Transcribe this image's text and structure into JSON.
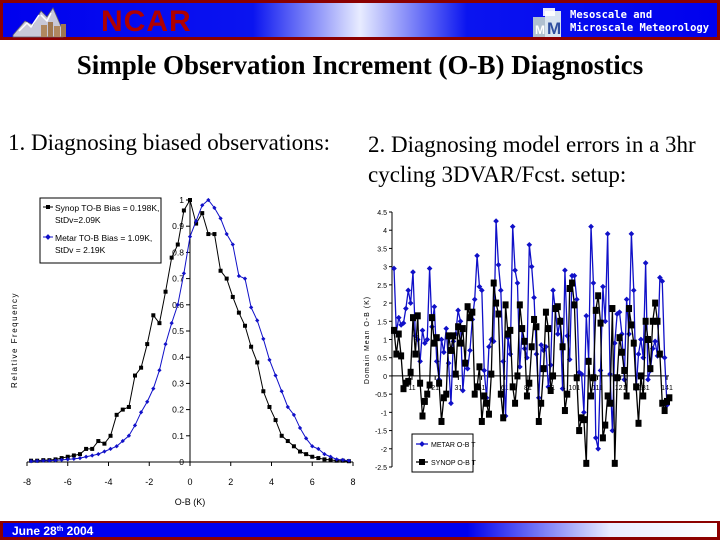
{
  "header": {
    "org_name": "NCAR",
    "org_logo_icon": "ncar-mountain-logo-icon",
    "group_logo_icon": "mmm-cube-logo-icon",
    "group_line1": "Mesoscale and",
    "group_line2": "Microscale Meteorology"
  },
  "slide": {
    "title": "Simple Observation Increment (O-B) Diagnostics",
    "section1": "1. Diagnosing biased observations:",
    "section2": "2. Diagnosing model errors in a 3hr cycling 3DVAR/Fcst. setup:"
  },
  "footer": {
    "date_prefix": "June 28",
    "date_sup": "th",
    "date_suffix": " 2004"
  },
  "colors": {
    "synop": "#000000",
    "metar": "#1010c8",
    "bar_border": "#8b0000",
    "bar_blue": "#0000ee",
    "ncar_red": "#b00000"
  },
  "chart_data": [
    {
      "type": "line",
      "title": "",
      "xlabel": "O-B (K)",
      "ylabel": "Relative Frequency",
      "xlim": [
        -8,
        8
      ],
      "ylim": [
        0,
        1
      ],
      "xticks": [
        -8,
        -6,
        -4,
        -2,
        0,
        2,
        4,
        6,
        8
      ],
      "yticks": [
        0,
        0.1,
        0.2,
        0.3,
        0.4,
        0.5,
        0.6,
        0.7,
        0.8,
        0.9,
        1
      ],
      "grid": false,
      "legend_position": "top-left",
      "series": [
        {
          "name": "Synop TO-B Bias = 0.198K, StDv=2.09K",
          "marker": "square",
          "x": [
            -7.8,
            -7.5,
            -7.2,
            -6.9,
            -6.6,
            -6.3,
            -6.0,
            -5.7,
            -5.4,
            -5.1,
            -4.8,
            -4.5,
            -4.2,
            -3.9,
            -3.6,
            -3.3,
            -3.0,
            -2.7,
            -2.4,
            -2.1,
            -1.8,
            -1.5,
            -1.2,
            -0.9,
            -0.6,
            -0.3,
            0.0,
            0.3,
            0.6,
            0.9,
            1.2,
            1.5,
            1.8,
            2.1,
            2.4,
            2.7,
            3.0,
            3.3,
            3.6,
            3.9,
            4.2,
            4.5,
            4.8,
            5.1,
            5.4,
            5.7,
            6.0,
            6.3,
            6.6,
            6.9,
            7.2,
            7.5,
            7.8
          ],
          "y": [
            0.005,
            0.005,
            0.007,
            0.007,
            0.01,
            0.015,
            0.02,
            0.025,
            0.03,
            0.05,
            0.05,
            0.08,
            0.07,
            0.1,
            0.18,
            0.2,
            0.21,
            0.33,
            0.36,
            0.45,
            0.56,
            0.53,
            0.65,
            0.78,
            0.83,
            0.96,
            1.0,
            0.91,
            0.95,
            0.87,
            0.87,
            0.73,
            0.7,
            0.63,
            0.57,
            0.52,
            0.44,
            0.38,
            0.27,
            0.21,
            0.16,
            0.1,
            0.08,
            0.06,
            0.04,
            0.03,
            0.02,
            0.015,
            0.01,
            0.008,
            0.005,
            0.005,
            0.003
          ]
        },
        {
          "name": "Metar TO-B Bias = 1.09K, StDv = 2.19K",
          "marker": "diamond",
          "x": [
            -7.8,
            -7.5,
            -7.2,
            -6.9,
            -6.6,
            -6.3,
            -6.0,
            -5.7,
            -5.4,
            -5.1,
            -4.8,
            -4.5,
            -4.2,
            -3.9,
            -3.6,
            -3.3,
            -3.0,
            -2.7,
            -2.4,
            -2.1,
            -1.8,
            -1.5,
            -1.2,
            -0.9,
            -0.6,
            -0.3,
            0.0,
            0.3,
            0.6,
            0.9,
            1.2,
            1.5,
            1.8,
            2.1,
            2.4,
            2.7,
            3.0,
            3.3,
            3.6,
            3.9,
            4.2,
            4.5,
            4.8,
            5.1,
            5.4,
            5.7,
            6.0,
            6.3,
            6.6,
            6.9,
            7.2,
            7.5,
            7.8
          ],
          "y": [
            0.003,
            0.004,
            0.005,
            0.005,
            0.006,
            0.008,
            0.01,
            0.012,
            0.015,
            0.02,
            0.025,
            0.03,
            0.04,
            0.05,
            0.06,
            0.08,
            0.1,
            0.14,
            0.19,
            0.23,
            0.28,
            0.35,
            0.45,
            0.53,
            0.6,
            0.72,
            0.86,
            0.92,
            0.98,
            1.0,
            0.97,
            0.93,
            0.87,
            0.83,
            0.71,
            0.7,
            0.59,
            0.54,
            0.47,
            0.39,
            0.33,
            0.27,
            0.21,
            0.18,
            0.13,
            0.09,
            0.06,
            0.05,
            0.03,
            0.02,
            0.01,
            0.008,
            0.005
          ]
        }
      ]
    },
    {
      "type": "line",
      "title": "",
      "xlabel": "",
      "ylabel": "Domain Mean O-B (K)",
      "ylim": [
        -2.5,
        4.5
      ],
      "yticks": [
        -2.5,
        -2,
        -1.5,
        -1,
        -0.5,
        0,
        0.5,
        1,
        1.5,
        2,
        2.5,
        3,
        3.5,
        4,
        4.5
      ],
      "xtick_labels": [
        "11",
        "21",
        "31",
        "51",
        "61",
        "81",
        "91",
        "101",
        "111",
        "121",
        "131",
        "141"
      ],
      "grid": false,
      "legend_position": "bottom-left",
      "series": [
        {
          "name": "METAR O-B T",
          "marker": "diamond",
          "values": [
            2.95,
            1.2,
            1.6,
            1.4,
            1.45,
            1.85,
            2.35,
            2.0,
            2.85,
            1.1,
            1.0,
            0.4,
            1.25,
            0.9,
            1.0,
            2.95,
            1.35,
            1.9,
            0.4,
            -0.1,
            1.0,
            0.65,
            1.3,
            0.35,
            -0.75,
            0.95,
            1.15,
            1.8,
            1.5,
            -0.4,
            0.4,
            0.2,
            0.7,
            1.55,
            2.1,
            3.3,
            2.45,
            2.35,
            0.15,
            -0.6,
            0.8,
            1.0,
            0.95,
            4.25,
            3.05,
            2.35,
            0.4,
            -1.1,
            1.05,
            0.6,
            4.1,
            2.9,
            2.55,
            0.25,
            1.25,
            0.75,
            0.5,
            3.6,
            3.0,
            2.15,
            0.6,
            -0.6,
            0.85,
            0.7,
            0.8,
            -0.3,
            0.3,
            2.35,
            1.8,
            1.15,
            1.55,
            -0.35,
            2.9,
            1.1,
            0.45,
            2.75,
            2.75,
            2.1,
            0.1,
            0.05,
            -1.0,
            1.65,
            0.45,
            4.1,
            2.55,
            -1.7,
            -2.0,
            0.15,
            2.45,
            1.5,
            3.9,
            0.05,
            -1.5,
            0.9,
            1.7,
            1.75,
            1.15,
            -0.1,
            2.1,
            1.15,
            3.9,
            2.35,
            -0.35,
            0.6,
            1.0,
            0.5,
            3.1,
            -0.1,
            0.15,
            0.75,
            0.95,
            0.55,
            2.7,
            2.6,
            0.5,
            -0.8
          ]
        },
        {
          "name": "SYNOP O-B T",
          "marker": "square",
          "values": [
            1.25,
            0.6,
            1.15,
            0.55,
            -0.35,
            -0.2,
            -0.15,
            0.1,
            1.6,
            0.6,
            1.65,
            -0.2,
            -1.1,
            -0.7,
            -0.5,
            -0.25,
            1.6,
            0.9,
            1.05,
            -0.2,
            -1.25,
            -0.6,
            -0.5,
            1.1,
            0.7,
            1.1,
            0.05,
            1.35,
            0.9,
            1.3,
            0.35,
            1.9,
            1.6,
            1.75,
            -0.5,
            -0.3,
            0.25,
            -1.25,
            -0.55,
            -0.75,
            -1.05,
            0.05,
            2.55,
            2.0,
            1.7,
            -0.5,
            -1.15,
            1.95,
            1.15,
            1.25,
            -0.3,
            -0.75,
            0.0,
            1.95,
            1.3,
            0.95,
            -0.55,
            -0.2,
            0.8,
            1.55,
            1.35,
            -1.25,
            -0.75,
            0.2,
            1.75,
            1.3,
            -0.4,
            0.0,
            1.85,
            1.9,
            1.5,
            0.8,
            -0.95,
            -0.5,
            2.4,
            2.55,
            1.95,
            -0.05,
            -1.5,
            -1.15,
            -1.2,
            -2.4,
            0.4,
            -0.55,
            -0.05,
            1.8,
            2.2,
            1.45,
            -1.7,
            -1.35,
            -0.55,
            -0.75,
            1.85,
            -2.4,
            -0.05,
            1.05,
            0.65,
            0.15,
            -0.55,
            1.85,
            1.4,
            0.9,
            -0.3,
            -1.3,
            0.0,
            -0.55,
            1.5,
            1.0,
            0.2,
            1.5,
            2.0,
            1.5,
            0.6,
            -0.75,
            -0.95,
            -0.7,
            -0.6
          ]
        }
      ]
    }
  ]
}
